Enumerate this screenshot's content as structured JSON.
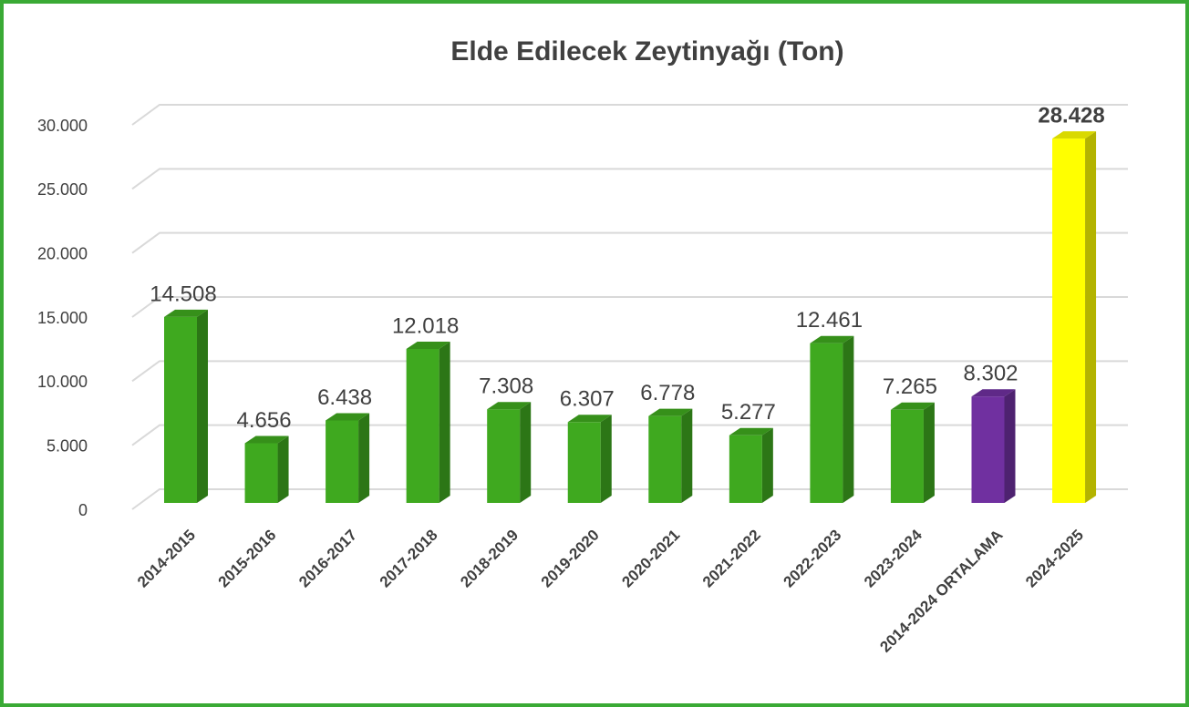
{
  "chart_data": {
    "type": "bar",
    "title": "Elde Edilecek Zeytinyağı (Ton)",
    "categories": [
      "2014-2015",
      "2015-2016",
      "2016-2017",
      "2017-2018",
      "2018-2019",
      "2019-2020",
      "2020-2021",
      "2021-2022",
      "2022-2023",
      "2023-2024",
      "2014-2024 ORTALAMA",
      "2024-2025"
    ],
    "values": [
      14508,
      4656,
      6438,
      12018,
      7308,
      6307,
      6778,
      5277,
      12461,
      7265,
      8302,
      28428
    ],
    "value_labels": [
      "14.508",
      "4.656",
      "6.438",
      "12.018",
      "7.308",
      "6.307",
      "6.778",
      "5.277",
      "12.461",
      "7.265",
      "8.302",
      "28.428"
    ],
    "colors": [
      "#3fa91f",
      "#3fa91f",
      "#3fa91f",
      "#3fa91f",
      "#3fa91f",
      "#3fa91f",
      "#3fa91f",
      "#3fa91f",
      "#3fa91f",
      "#3fa91f",
      "#7030a0",
      "#ffff00"
    ],
    "ylim": [
      0,
      30000
    ],
    "yticks": [
      0,
      {
        "value": 5000,
        "label": "5.000"
      },
      {
        "value": 10000,
        "label": "10.000"
      },
      {
        "value": 15000,
        "label": "15.000"
      },
      {
        "value": 20000,
        "label": "20.000"
      },
      {
        "value": 25000,
        "label": "25.000"
      },
      {
        "value": 30000,
        "label": "30.000"
      }
    ],
    "grid": true
  }
}
